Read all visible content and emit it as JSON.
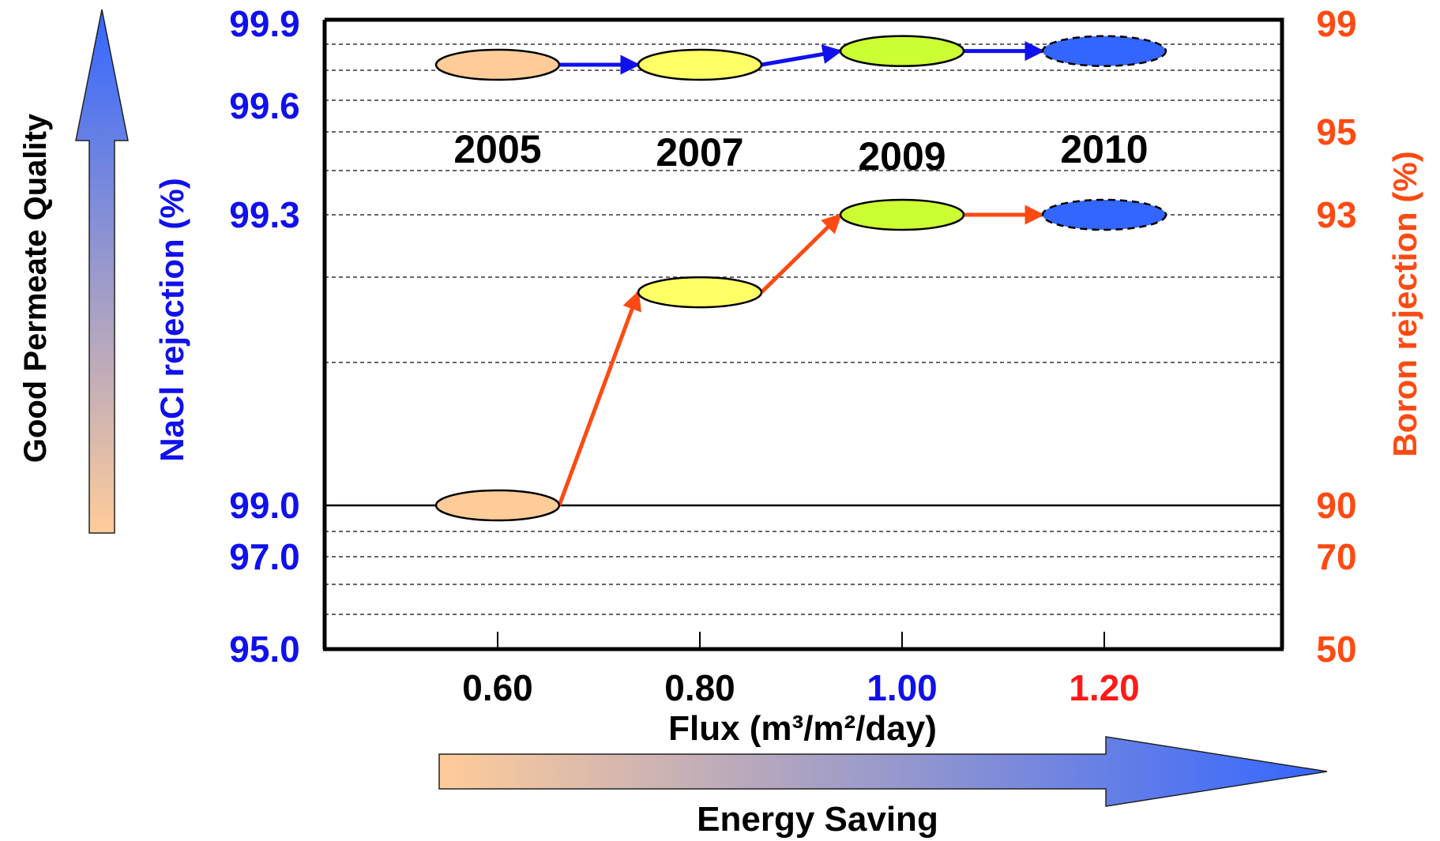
{
  "colors": {
    "nacl": "#1010ee",
    "boron": "#ff4a12",
    "axis": "#000000",
    "grid": "#333333",
    "marker_2005": "#ffcc99",
    "marker_2007": "#ffff66",
    "marker_2009": "#ccff33",
    "marker_2010": "#3366ff",
    "tick_100": "#1010ee",
    "tick_120": "#ff1a1a",
    "gradient_start": "#ffcc99",
    "gradient_end": "#3366ff"
  },
  "annotations": {
    "good_permeate_quality": "Good Permeate Quality",
    "energy_saving": "Energy Saving"
  },
  "chart_data": {
    "type": "scatter",
    "xlabel": "Flux (m³/m²/day)",
    "ylabel_left": "NaCl rejection (%)",
    "ylabel_right": "Boron rejection (%)",
    "x_ticks": [
      "0.60",
      "0.80",
      "1.00",
      "1.20"
    ],
    "y_left_ticks": [
      "99.9",
      "99.6",
      "99.3",
      "99.0",
      "97.0",
      "95.0"
    ],
    "y_right_ticks": [
      "99",
      "95",
      "93",
      "90",
      "70",
      "50"
    ],
    "grid": "dashed horizontal",
    "year_labels": [
      "2005",
      "2007",
      "2009",
      "2010"
    ],
    "series": [
      {
        "name": "NaCl rejection (%)",
        "color": "#1010ee",
        "points": [
          {
            "year": "2005",
            "x": 0.6,
            "y": 99.75
          },
          {
            "year": "2007",
            "x": 0.8,
            "y": 99.75
          },
          {
            "year": "2009",
            "x": 1.0,
            "y": 99.8
          },
          {
            "year": "2010",
            "x": 1.2,
            "y": 99.8,
            "projected": true
          }
        ]
      },
      {
        "name": "Boron rejection (%)",
        "color": "#ff4a12",
        "points": [
          {
            "year": "2005",
            "x": 0.6,
            "y": 90
          },
          {
            "year": "2007",
            "x": 0.8,
            "y": 92.2
          },
          {
            "year": "2009",
            "x": 1.0,
            "y": 93
          },
          {
            "year": "2010",
            "x": 1.2,
            "y": 93,
            "projected": true
          }
        ]
      }
    ]
  }
}
